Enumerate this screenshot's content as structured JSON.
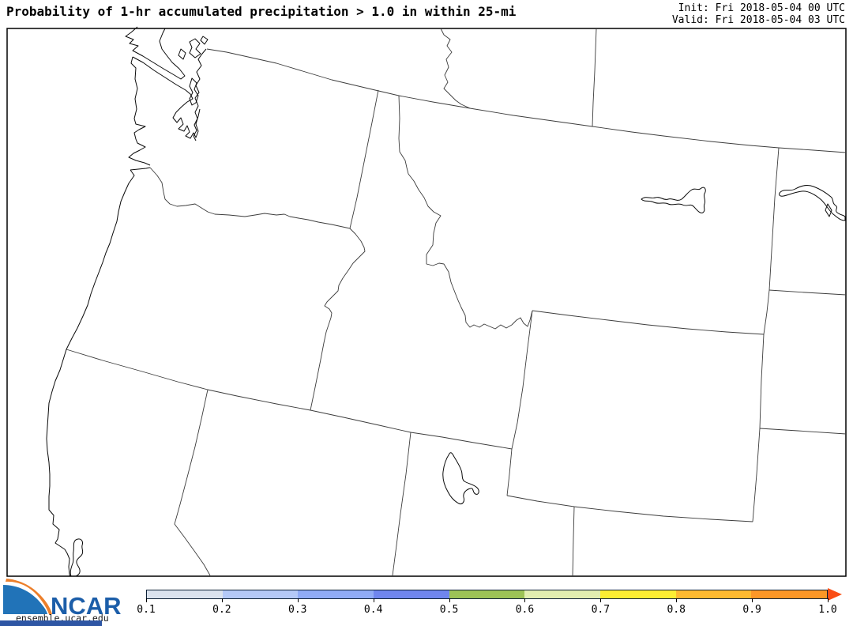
{
  "title": "Probability of 1-hr accumulated precipitation > 1.0 in within 25-mi",
  "timestamps": {
    "init": "Init: Fri 2018-05-04 00 UTC",
    "valid": "Valid: Fri 2018-05-04 03 UTC"
  },
  "map": {
    "regions": [
      "us-canada-border",
      "bc-alberta-border",
      "alberta-saskatchewan-border",
      "washington-idaho-border",
      "washington-oregon-border",
      "oregon-idaho-border",
      "idaho-montana-border",
      "montana-dakotas-border",
      "north-south-dakota-border",
      "south-dakota-nebraska-border",
      "wyoming-borders",
      "42n-state-line",
      "california-nevada-border",
      "nevada-utah-border",
      "utah-colorado-border",
      "pacific-coastline",
      "puget-sound",
      "vancouver-island",
      "san-juan-islands",
      "whidbey-island",
      "fort-peck-lake",
      "lake-sakakawea",
      "great-salt-lake",
      "clear-lake"
    ]
  },
  "logo": {
    "name": "NCAR",
    "url_text": "ensemble.ucar.edu",
    "swoosh_blue": "#2173b8",
    "swoosh_orange": "#ec7f2b",
    "text_blue": "#1c5ea9",
    "bar_blue": "#2e56a4"
  },
  "colorbar": {
    "tick_labels": [
      "0.1",
      "0.2",
      "0.3",
      "0.4",
      "0.5",
      "0.6",
      "0.7",
      "0.8",
      "0.9",
      "1.0"
    ],
    "segment_colors": [
      "#dbe3ee",
      "#b4c9f7",
      "#8fabf5",
      "#6f86ee",
      "#9cc356",
      "#e1eeb0",
      "#fcee33",
      "#fdba30",
      "#fc9727"
    ],
    "arrow_color": "#fa4e15",
    "border_color": "#0d2137",
    "range_min": 0.1,
    "range_max": 1.0
  }
}
